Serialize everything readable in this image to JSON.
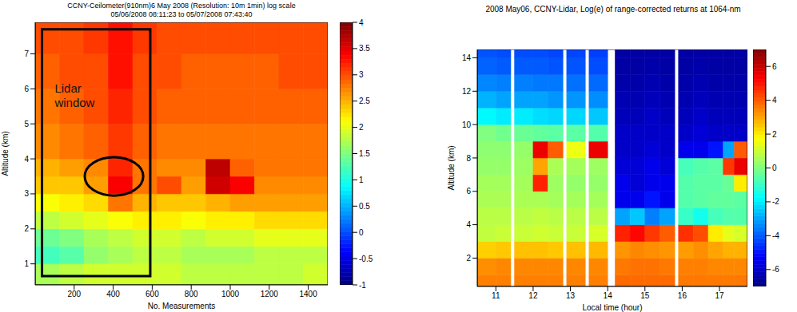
{
  "chart_data": [
    {
      "type": "heatmap",
      "title": "CCNY-Ceilometer(910nm)6 May 2008 (Resolution: 10m 1min) log scale",
      "subtitle": "05/06/2008 08:11:23 to 05/07/2008 07:43:40",
      "x_label": "No. Measurements",
      "y_label": "Altitude (km)",
      "xlim": [
        0,
        1500
      ],
      "xticks": [
        200,
        400,
        600,
        800,
        1000,
        1200,
        1400
      ],
      "ylim": [
        0.4,
        7.9
      ],
      "yticks": [
        1,
        2,
        3,
        4,
        5,
        6,
        7
      ],
      "colorbar": {
        "range": [
          -1,
          4
        ],
        "ticks": [
          -1,
          -0.5,
          0,
          0.5,
          1,
          1.5,
          2,
          2.5,
          3,
          3.5,
          4
        ]
      },
      "x_edges": [
        0,
        125,
        250,
        375,
        500,
        625,
        750,
        875,
        1000,
        1125,
        1250,
        1375,
        1500
      ],
      "y_edges": [
        0.4,
        1,
        1.5,
        2,
        2.5,
        3,
        3.5,
        4,
        5,
        6,
        7,
        7.9
      ],
      "cells": [
        [
          1.7,
          1.8,
          1.9,
          1.9,
          1.9,
          1.9,
          1.8,
          1.8,
          1.8,
          1.8,
          1.8,
          1.9
        ],
        [
          1.2,
          1.3,
          1.6,
          1.7,
          1.8,
          1.8,
          1.7,
          1.7,
          1.7,
          1.8,
          1.8,
          1.8
        ],
        [
          1.4,
          1.5,
          1.7,
          1.8,
          1.9,
          1.9,
          1.8,
          1.9,
          1.9,
          2.0,
          2.0,
          2.0
        ],
        [
          1.8,
          1.9,
          2.0,
          2.1,
          2.2,
          2.2,
          2.1,
          2.2,
          2.2,
          2.3,
          2.3,
          2.3
        ],
        [
          2.1,
          2.2,
          2.3,
          2.8,
          2.5,
          2.4,
          2.4,
          2.5,
          2.6,
          2.6,
          2.6,
          2.6
        ],
        [
          2.4,
          2.4,
          2.6,
          3.4,
          2.8,
          3.0,
          2.6,
          3.6,
          3.4,
          2.7,
          2.7,
          2.7
        ],
        [
          2.5,
          2.6,
          2.7,
          3.2,
          2.8,
          2.7,
          2.7,
          3.7,
          2.9,
          2.8,
          2.8,
          2.8
        ],
        [
          2.7,
          2.8,
          2.9,
          3.1,
          2.9,
          2.8,
          2.8,
          2.8,
          2.8,
          2.8,
          2.8,
          2.8
        ],
        [
          2.8,
          2.9,
          3.0,
          3.2,
          3.0,
          2.9,
          2.9,
          2.9,
          2.9,
          2.9,
          2.9,
          2.9
        ],
        [
          2.9,
          3.0,
          3.0,
          3.3,
          3.0,
          3.0,
          2.9,
          2.9,
          2.9,
          2.9,
          3.0,
          3.0
        ],
        [
          3.0,
          3.0,
          3.1,
          3.3,
          3.1,
          3.0,
          3.0,
          3.0,
          3.0,
          3.0,
          3.0,
          3.0
        ]
      ],
      "annotations": [
        {
          "type": "rect",
          "x1": 35,
          "x2": 590,
          "y1": 0.65,
          "y2": 7.7
        },
        {
          "type": "ellipse",
          "x1": 254,
          "x2": 554,
          "y1": 2.95,
          "y2": 4.05
        },
        {
          "type": "text",
          "text": "Lidar window",
          "x": 100,
          "y": 5.9
        }
      ]
    },
    {
      "type": "heatmap",
      "title": "2008 May06, CCNY-Lidar, Log(e) of range-corrected returns at 1064-nm",
      "x_label": "Local time (hour)",
      "y_label": "Altitude (km)",
      "xlim": [
        10.5,
        17.75
      ],
      "xticks": [
        11,
        12,
        13,
        14,
        15,
        16,
        17
      ],
      "ylim": [
        0.3,
        14.5
      ],
      "yticks": [
        2,
        4,
        6,
        8,
        10,
        12,
        14
      ],
      "colorbar": {
        "range": [
          -7,
          7
        ],
        "ticks": [
          -6,
          -4,
          -2,
          0,
          2,
          4,
          6
        ]
      },
      "x_edges": [
        10.5,
        11,
        11.4,
        11.5,
        12,
        12.4,
        12.8,
        12.9,
        13.4,
        13.5,
        14,
        14.2,
        14.6,
        15,
        15.4,
        15.8,
        15.9,
        16.3,
        16.7,
        17.1,
        17.4,
        17.75
      ],
      "y_edges": [
        0.3,
        1,
        2,
        3,
        4,
        5,
        6,
        7,
        8,
        9,
        10,
        11,
        12,
        13,
        14,
        14.5
      ],
      "cells": [
        [
          3.5,
          3.5,
          null,
          3.5,
          3.5,
          3.5,
          null,
          3.5,
          null,
          3.5,
          null,
          3.8,
          3.8,
          3.8,
          3.8,
          null,
          3.6,
          3.6,
          3.6,
          3.6,
          3.6
        ],
        [
          3.3,
          3.4,
          null,
          3.4,
          3.4,
          3.4,
          null,
          3.4,
          null,
          3.4,
          null,
          3.6,
          3.7,
          3.7,
          3.6,
          null,
          3.5,
          3.5,
          3.4,
          3.4,
          3.4
        ],
        [
          2.4,
          2.5,
          null,
          2.6,
          2.6,
          2.5,
          null,
          2.6,
          null,
          2.7,
          null,
          3.2,
          3.4,
          3.3,
          3.2,
          null,
          3.1,
          3.3,
          3.0,
          2.8,
          2.8
        ],
        [
          0.9,
          1.0,
          null,
          1.0,
          1.1,
          1.0,
          null,
          1.0,
          null,
          1.2,
          null,
          4.8,
          5.2,
          4.5,
          4.0,
          null,
          4.6,
          4.2,
          2.0,
          1.4,
          1.2
        ],
        [
          0.8,
          0.8,
          null,
          0.8,
          0.9,
          0.8,
          null,
          0.8,
          null,
          0.8,
          null,
          -3.0,
          -2.5,
          -3.5,
          -3.0,
          null,
          -1.0,
          -1.5,
          -0.8,
          -0.6,
          -0.6
        ],
        [
          0.6,
          0.6,
          null,
          0.6,
          0.6,
          0.5,
          null,
          0.5,
          null,
          0.5,
          null,
          -5.5,
          -5.5,
          -5.0,
          -5.5,
          null,
          -0.6,
          -0.5,
          -0.4,
          -0.4,
          -0.5
        ],
        [
          0.5,
          0.5,
          null,
          0.5,
          4.8,
          0.4,
          null,
          0.3,
          null,
          0.3,
          null,
          -5.5,
          -5.8,
          -5.5,
          -5.5,
          null,
          -0.6,
          -0.5,
          -0.5,
          -0.3,
          2.0
        ],
        [
          0.3,
          0.3,
          null,
          0.4,
          3.0,
          0.6,
          null,
          0.5,
          null,
          0.4,
          null,
          -5.8,
          -5.8,
          -5.5,
          -5.8,
          null,
          -0.8,
          -0.6,
          -0.5,
          4.5,
          5.5
        ],
        [
          0.2,
          0.2,
          null,
          0.3,
          5.5,
          4.0,
          null,
          1.5,
          null,
          5.5,
          null,
          -6.0,
          -6.0,
          -5.8,
          -6.0,
          null,
          -5.5,
          -5.5,
          -5.0,
          -3.0,
          4.0
        ],
        [
          0.0,
          -0.2,
          null,
          -0.3,
          -0.4,
          -0.5,
          null,
          -0.5,
          null,
          -0.6,
          null,
          -6.0,
          -6.0,
          -6.0,
          -6.0,
          null,
          -6.0,
          -5.8,
          -6.0,
          -6.0,
          -6.0
        ],
        [
          -1.8,
          -2.0,
          null,
          -2.0,
          -2.2,
          -2.3,
          null,
          -2.3,
          null,
          -2.5,
          null,
          -6.2,
          -6.2,
          -6.0,
          -6.2,
          null,
          -6.2,
          -6.0,
          -6.2,
          -6.2,
          -6.2
        ],
        [
          -2.8,
          -3.0,
          null,
          -3.0,
          -3.0,
          -3.2,
          null,
          -3.2,
          null,
          -3.3,
          null,
          -6.3,
          -6.3,
          -6.2,
          -6.3,
          null,
          -6.3,
          -6.2,
          -6.3,
          -6.3,
          -6.3
        ],
        [
          -3.4,
          -3.5,
          null,
          -3.5,
          -3.6,
          -3.6,
          null,
          -3.7,
          null,
          -3.8,
          null,
          -6.4,
          -6.4,
          -6.3,
          -6.4,
          null,
          -6.4,
          -6.3,
          -6.4,
          -6.4,
          -6.4
        ],
        [
          -3.9,
          -4.0,
          null,
          -4.0,
          -4.0,
          -4.1,
          null,
          -4.1,
          null,
          -4.2,
          null,
          -6.5,
          -6.5,
          -6.4,
          -6.5,
          null,
          -6.5,
          -6.4,
          -6.5,
          -6.5,
          -6.5
        ],
        [
          -4.1,
          -4.2,
          null,
          -4.2,
          -4.2,
          -4.3,
          null,
          -4.3,
          null,
          -4.4,
          null,
          -6.5,
          -6.5,
          -6.5,
          -6.5,
          null,
          -6.5,
          -6.5,
          -6.5,
          -6.5,
          -6.5
        ]
      ]
    }
  ]
}
